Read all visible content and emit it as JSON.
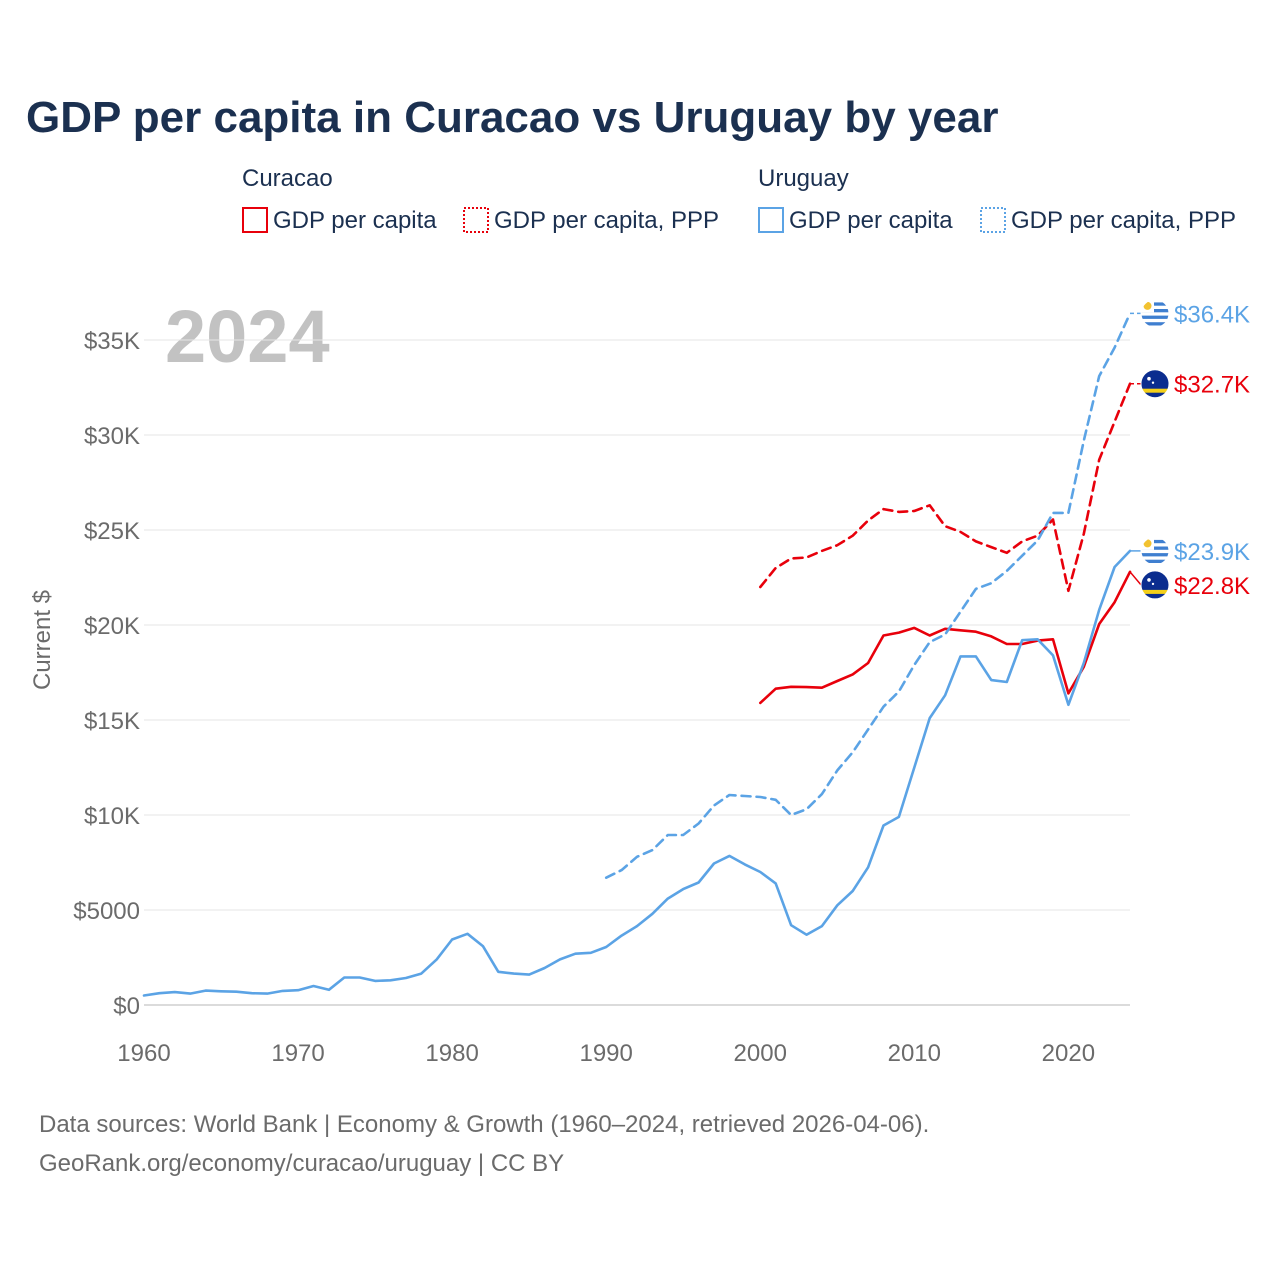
{
  "chart_data": {
    "type": "line",
    "title": "GDP per capita in Curacao vs Uruguay by year",
    "year_watermark": "2024",
    "ylabel": "Current $",
    "xlabel": "",
    "xlim": [
      1960,
      2024
    ],
    "ylim": [
      0,
      36500
    ],
    "x_ticks": [
      1960,
      1970,
      1980,
      1990,
      2000,
      2010,
      2020
    ],
    "x_tick_labels": [
      "1960",
      "1970",
      "1980",
      "1990",
      "2000",
      "2010",
      "2020"
    ],
    "y_ticks": [
      0,
      5000,
      10000,
      15000,
      20000,
      25000,
      30000,
      35000
    ],
    "y_tick_labels": [
      "$0",
      "$5000",
      "$10K",
      "$15K",
      "$20K",
      "$25K",
      "$30K",
      "$35K"
    ],
    "grid": true,
    "legend": {
      "groups": [
        {
          "name": "Curacao",
          "entries": [
            "GDP per capita",
            "GDP per capita, PPP"
          ]
        },
        {
          "name": "Uruguay",
          "entries": [
            "GDP per capita",
            "GDP per capita, PPP"
          ]
        }
      ]
    },
    "series": [
      {
        "name": "Curacao GDP per capita",
        "country": "Curacao",
        "color": "#e8000b",
        "style": "solid",
        "end_label": "$22.8K",
        "x": [
          2000,
          2001,
          2002,
          2003,
          2004,
          2005,
          2006,
          2007,
          2008,
          2009,
          2010,
          2011,
          2012,
          2013,
          2014,
          2015,
          2016,
          2017,
          2018,
          2019,
          2020,
          2021,
          2022,
          2023,
          2024
        ],
        "values": [
          15900,
          16650,
          16750,
          16730,
          16700,
          17050,
          17400,
          18000,
          19450,
          19600,
          19850,
          19450,
          19800,
          19720,
          19650,
          19400,
          19000,
          19000,
          19180,
          19250,
          16400,
          17800,
          20050,
          21200,
          22800
        ]
      },
      {
        "name": "Curacao GDP per capita, PPP",
        "country": "Curacao",
        "color": "#e8000b",
        "style": "dashed",
        "end_label": "$32.7K",
        "x": [
          2000,
          2001,
          2002,
          2003,
          2004,
          2005,
          2006,
          2007,
          2008,
          2009,
          2010,
          2011,
          2012,
          2013,
          2014,
          2015,
          2016,
          2017,
          2018,
          2019,
          2020,
          2021,
          2022,
          2023,
          2024
        ],
        "values": [
          22000,
          23000,
          23500,
          23550,
          23900,
          24200,
          24700,
          25500,
          26100,
          25950,
          26000,
          26300,
          25200,
          24900,
          24400,
          24100,
          23800,
          24400,
          24700,
          25550,
          21800,
          24800,
          28700,
          30700,
          32700
        ]
      },
      {
        "name": "Uruguay GDP per capita",
        "country": "Uruguay",
        "color": "#5ba3e5",
        "style": "solid",
        "end_label": "$23.9K",
        "x": [
          1960,
          1961,
          1962,
          1963,
          1964,
          1965,
          1966,
          1967,
          1968,
          1969,
          1970,
          1971,
          1972,
          1973,
          1974,
          1975,
          1976,
          1977,
          1978,
          1979,
          1980,
          1981,
          1982,
          1983,
          1984,
          1985,
          1986,
          1987,
          1988,
          1989,
          1990,
          1991,
          1992,
          1993,
          1994,
          1995,
          1996,
          1997,
          1998,
          1999,
          2000,
          2001,
          2002,
          2003,
          2004,
          2005,
          2006,
          2007,
          2008,
          2009,
          2010,
          2011,
          2012,
          2013,
          2014,
          2015,
          2016,
          2017,
          2018,
          2019,
          2020,
          2021,
          2022,
          2023,
          2024
        ],
        "values": [
          500,
          620,
          680,
          600,
          760,
          720,
          700,
          620,
          600,
          740,
          780,
          1000,
          800,
          1450,
          1450,
          1270,
          1300,
          1420,
          1650,
          2400,
          3450,
          3750,
          3100,
          1750,
          1650,
          1600,
          1950,
          2400,
          2700,
          2750,
          3050,
          3650,
          4150,
          4800,
          5600,
          6100,
          6450,
          7450,
          7850,
          7400,
          7000,
          6400,
          4200,
          3700,
          4150,
          5250,
          6000,
          7250,
          9450,
          9900,
          12500,
          15100,
          16300,
          18350,
          18350,
          17100,
          17000,
          19200,
          19250,
          18400,
          15800,
          18000,
          20800,
          23050,
          23900
        ]
      },
      {
        "name": "Uruguay GDP per capita, PPP",
        "country": "Uruguay",
        "color": "#5ba3e5",
        "style": "dashed",
        "end_label": "$36.4K",
        "x": [
          1990,
          1991,
          1992,
          1993,
          1994,
          1995,
          1996,
          1997,
          1998,
          1999,
          2000,
          2001,
          2002,
          2003,
          2004,
          2005,
          2006,
          2007,
          2008,
          2009,
          2010,
          2011,
          2012,
          2013,
          2014,
          2015,
          2016,
          2017,
          2018,
          2019,
          2020,
          2021,
          2022,
          2023,
          2024
        ],
        "values": [
          6700,
          7100,
          7800,
          8150,
          8950,
          8950,
          9550,
          10500,
          11050,
          11000,
          10950,
          10800,
          10000,
          10300,
          11100,
          12350,
          13300,
          14500,
          15700,
          16500,
          17900,
          19100,
          19500,
          20700,
          21900,
          22200,
          22850,
          23650,
          24450,
          25900,
          25900,
          29700,
          33100,
          34600,
          36400
        ]
      }
    ],
    "flags": {
      "Curacao": "curacao-flag-icon",
      "Uruguay": "uruguay-flag-icon"
    }
  },
  "source_lines": [
    "Data sources: World Bank | Economy & Growth (1960–2024, retrieved 2026-04-06).",
    "GeoRank.org/economy/curacao/uruguay | CC BY"
  ]
}
